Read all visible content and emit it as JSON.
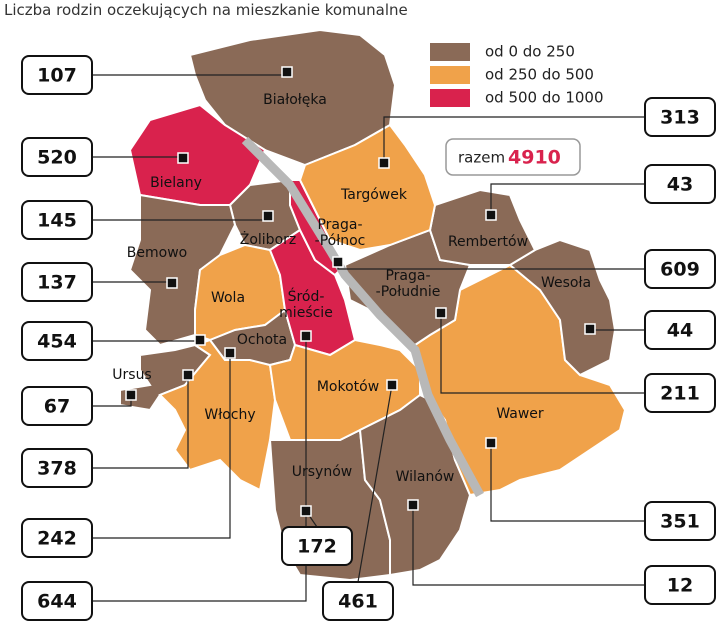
{
  "title": "Liczba rodzin oczekujących na mieszkanie komunalne",
  "legend": [
    {
      "label": "od 0 do 250",
      "color": "#8a6a57"
    },
    {
      "label": "od 250 do 500",
      "color": "#f0a24a"
    },
    {
      "label": "od 500 do 1000",
      "color": "#d9224d"
    }
  ],
  "total": {
    "label": "razem",
    "value": 4910
  },
  "districts": [
    {
      "name": "Białołęka",
      "value": 107
    },
    {
      "name": "Bielany",
      "value": 520
    },
    {
      "name": "Żoliborz",
      "value": 145
    },
    {
      "name": "Bemowo",
      "value": 137
    },
    {
      "name": "Wola",
      "value": 454
    },
    {
      "name": "Ursus",
      "value": 67
    },
    {
      "name": "Włochy",
      "value": 378
    },
    {
      "name": "Ochota",
      "value": 242
    },
    {
      "name": [
        "Śród-",
        "mieście"
      ],
      "value": 644
    },
    {
      "name": "Ursynów",
      "value": 172
    },
    {
      "name": "Mokotów",
      "value": 461
    },
    {
      "name": "Wilanów",
      "value": 12
    },
    {
      "name": "Wawer",
      "value": 351
    },
    {
      "name": [
        "Praga-",
        "-Południe"
      ],
      "value": 211
    },
    {
      "name": "Wesoła",
      "value": 44
    },
    {
      "name": [
        "Praga-",
        "-Północ"
      ],
      "value": 609
    },
    {
      "name": "Rembertów",
      "value": 43
    },
    {
      "name": "Targówek",
      "value": 313
    }
  ]
}
